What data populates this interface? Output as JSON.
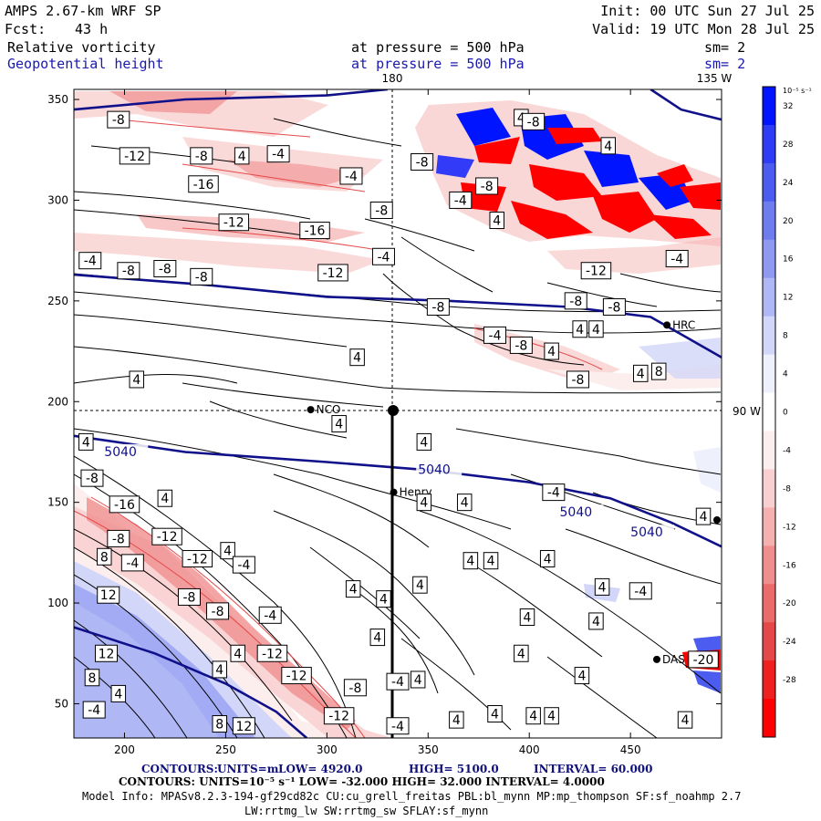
{
  "header": {
    "model": "AMPS 2.67-km WRF SP",
    "fcst_label": "Fcst:",
    "fcst_value": "43 h",
    "init": "Init: 00 UTC Sun 27 Jul 25",
    "valid": "Valid: 19 UTC Mon 28 Jul 25",
    "field1": "Relative vorticity",
    "field2": "Geopotential height",
    "pressure1": "at pressure =  500 hPa",
    "pressure2": "at pressure =  500 hPa",
    "sm1": "sm= 2",
    "sm2": "sm= 2",
    "lon_180": "180",
    "lon_135w": "135 W",
    "lat_90w": "90 W"
  },
  "stations": [
    {
      "name": "NCO",
      "x": 292,
      "y": 196
    },
    {
      "name": "Henry",
      "x": 333,
      "y": 155
    },
    {
      "name": "HRC",
      "x": 468,
      "y": 238
    },
    {
      "name": "DAS",
      "x": 463,
      "y": 72
    }
  ],
  "footer": {
    "line1_prefix": "CONTOURS:",
    "line1_units": "UNITS=m",
    "line1_low": "LOW=   4920.0",
    "line1_high": "HIGH=  5100.0",
    "line1_interval": "INTERVAL=   60.000",
    "line2": "CONTOURS:  UNITS=10⁻⁵ s⁻¹   LOW=  -32.000        HIGH=  32.000      INTERVAL=   4.0000",
    "line3": "Model Info: MPASv8.2.3-194-gf29cd82c CU:cu_grell_freitas PBL:bl_mynn MP:mp_thompson SF:sf_noahmp 2.7",
    "line4": "LW:rrtmg_lw SW:rrtmg_sw SFLAY:sf_mynn"
  },
  "colorbar": {
    "unit": "10⁻⁵ s⁻¹",
    "levels": [
      32,
      28,
      24,
      20,
      16,
      12,
      8,
      4,
      0,
      -4,
      -8,
      -12,
      -16,
      -20,
      -24,
      -28,
      -32
    ],
    "colors": [
      "#0014ff",
      "#2e3df5",
      "#4d5cf0",
      "#6f7cf0",
      "#8f99f2",
      "#b0b7f5",
      "#d2d6f8",
      "#eef0fc",
      "#ffffff",
      "#fdeeee",
      "#f9d0d0",
      "#f5b0b0",
      "#f08e8e",
      "#eb6a6a",
      "#e54848",
      "#ee2020",
      "#ff0000"
    ]
  },
  "chart_data": {
    "type": "heatmap",
    "x_ticks": [
      200,
      250,
      300,
      350,
      400,
      450
    ],
    "y_ticks": [
      50,
      100,
      150,
      200,
      250,
      300,
      350
    ],
    "xlim": [
      175,
      495
    ],
    "ylim": [
      33,
      355
    ],
    "height_contours": [
      {
        "label": "5040",
        "points": [
          [
            175,
            183
          ],
          [
            230,
            175
          ],
          [
            300,
            170
          ],
          [
            350,
            166
          ],
          [
            400,
            160
          ],
          [
            440,
            152
          ],
          [
            470,
            140
          ],
          [
            495,
            128
          ]
        ]
      },
      {
        "label": "",
        "points": [
          [
            175,
            263
          ],
          [
            240,
            258
          ],
          [
            300,
            252
          ],
          [
            360,
            250
          ],
          [
            420,
            247
          ],
          [
            460,
            242
          ],
          [
            495,
            222
          ]
        ]
      },
      {
        "label": "",
        "points": [
          [
            175,
            88
          ],
          [
            215,
            75
          ],
          [
            250,
            60
          ],
          [
            275,
            46
          ],
          [
            290,
            33
          ]
        ]
      },
      {
        "label": "",
        "points": [
          [
            175,
            345
          ],
          [
            230,
            350
          ],
          [
            300,
            352
          ],
          [
            330,
            355
          ]
        ]
      },
      {
        "label": "",
        "points": [
          [
            460,
            355
          ],
          [
            475,
            345
          ],
          [
            495,
            340
          ]
        ]
      }
    ],
    "height_labels": [
      {
        "text": "5040",
        "x": 190,
        "y": 173
      },
      {
        "text": "5040",
        "x": 345,
        "y": 164
      },
      {
        "text": "5040",
        "x": 415,
        "y": 143
      },
      {
        "text": "5040",
        "x": 450,
        "y": 133
      }
    ],
    "vorticity_labels": [
      {
        "text": "-8",
        "x": 197,
        "y": 340
      },
      {
        "text": "-12",
        "x": 205,
        "y": 322
      },
      {
        "text": "-8",
        "x": 238,
        "y": 322
      },
      {
        "text": "4",
        "x": 258,
        "y": 322
      },
      {
        "text": "-4",
        "x": 276,
        "y": 323
      },
      {
        "text": "-16",
        "x": 239,
        "y": 308
      },
      {
        "text": "-4",
        "x": 312,
        "y": 312
      },
      {
        "text": "-8",
        "x": 347,
        "y": 319
      },
      {
        "text": "-4",
        "x": 366,
        "y": 300
      },
      {
        "text": "-8",
        "x": 379,
        "y": 307
      },
      {
        "text": "4",
        "x": 396,
        "y": 341
      },
      {
        "text": "-8",
        "x": 402,
        "y": 339
      },
      {
        "text": "4",
        "x": 439,
        "y": 327
      },
      {
        "text": "-8",
        "x": 327,
        "y": 295
      },
      {
        "text": "-12",
        "x": 254,
        "y": 289
      },
      {
        "text": "-16",
        "x": 294,
        "y": 285
      },
      {
        "text": "4",
        "x": 384,
        "y": 290
      },
      {
        "text": "-4",
        "x": 183,
        "y": 270
      },
      {
        "text": "-8",
        "x": 202,
        "y": 265
      },
      {
        "text": "-8",
        "x": 220,
        "y": 266
      },
      {
        "text": "-8",
        "x": 238,
        "y": 262
      },
      {
        "text": "-12",
        "x": 303,
        "y": 264
      },
      {
        "text": "-4",
        "x": 328,
        "y": 272
      },
      {
        "text": "-12",
        "x": 433,
        "y": 265
      },
      {
        "text": "-4",
        "x": 473,
        "y": 271
      },
      {
        "text": "-8",
        "x": 423,
        "y": 250
      },
      {
        "text": "-8",
        "x": 442,
        "y": 247
      },
      {
        "text": "-8",
        "x": 355,
        "y": 247
      },
      {
        "text": "-4",
        "x": 383,
        "y": 233
      },
      {
        "text": "-8",
        "x": 396,
        "y": 228
      },
      {
        "text": "4",
        "x": 425,
        "y": 236
      },
      {
        "text": "4",
        "x": 433,
        "y": 236
      },
      {
        "text": "4",
        "x": 411,
        "y": 225
      },
      {
        "text": "-8",
        "x": 424,
        "y": 211
      },
      {
        "text": "4",
        "x": 455,
        "y": 214
      },
      {
        "text": "8",
        "x": 464,
        "y": 215
      },
      {
        "text": "4",
        "x": 315,
        "y": 222
      },
      {
        "text": "4",
        "x": 206,
        "y": 211
      },
      {
        "text": "4",
        "x": 306,
        "y": 189
      },
      {
        "text": "4",
        "x": 181,
        "y": 180
      },
      {
        "text": "-8",
        "x": 184,
        "y": 162
      },
      {
        "text": "-16",
        "x": 200,
        "y": 149
      },
      {
        "text": "4",
        "x": 220,
        "y": 152
      },
      {
        "text": "4",
        "x": 348,
        "y": 150
      },
      {
        "text": "4",
        "x": 368,
        "y": 150
      },
      {
        "text": "-4",
        "x": 412,
        "y": 155
      },
      {
        "text": "4",
        "x": 409,
        "y": 122
      },
      {
        "text": "-8",
        "x": 197,
        "y": 132
      },
      {
        "text": "-12",
        "x": 221,
        "y": 133
      },
      {
        "text": "4",
        "x": 251,
        "y": 126
      },
      {
        "text": "8",
        "x": 190,
        "y": 123
      },
      {
        "text": "-4",
        "x": 204,
        "y": 120
      },
      {
        "text": "-12",
        "x": 236,
        "y": 122
      },
      {
        "text": "-4",
        "x": 259,
        "y": 119
      },
      {
        "text": "12",
        "x": 192,
        "y": 104
      },
      {
        "text": "-8",
        "x": 232,
        "y": 103
      },
      {
        "text": "-8",
        "x": 246,
        "y": 96
      },
      {
        "text": "-4",
        "x": 272,
        "y": 94
      },
      {
        "text": "4",
        "x": 313,
        "y": 107
      },
      {
        "text": "4",
        "x": 328,
        "y": 102
      },
      {
        "text": "4",
        "x": 346,
        "y": 109
      },
      {
        "text": "4",
        "x": 371,
        "y": 121
      },
      {
        "text": "4",
        "x": 381,
        "y": 121
      },
      {
        "text": "4",
        "x": 436,
        "y": 108
      },
      {
        "text": "-4",
        "x": 455,
        "y": 106
      },
      {
        "text": "4",
        "x": 399,
        "y": 93
      },
      {
        "text": "4",
        "x": 433,
        "y": 91
      },
      {
        "text": "4",
        "x": 325,
        "y": 83
      },
      {
        "text": "4",
        "x": 396,
        "y": 75
      },
      {
        "text": "12",
        "x": 191,
        "y": 75
      },
      {
        "text": "4",
        "x": 256,
        "y": 75
      },
      {
        "text": "-12",
        "x": 273,
        "y": 75
      },
      {
        "text": "4",
        "x": 247,
        "y": 67
      },
      {
        "text": "-12",
        "x": 285,
        "y": 64
      },
      {
        "text": "8",
        "x": 184,
        "y": 63
      },
      {
        "text": "-8",
        "x": 314,
        "y": 58
      },
      {
        "text": "-4",
        "x": 335,
        "y": 61
      },
      {
        "text": "4",
        "x": 345,
        "y": 62
      },
      {
        "text": "4",
        "x": 426,
        "y": 64
      },
      {
        "text": "4",
        "x": 197,
        "y": 55
      },
      {
        "text": "-4",
        "x": 185,
        "y": 47
      },
      {
        "text": "-12",
        "x": 306,
        "y": 44
      },
      {
        "text": "4",
        "x": 383,
        "y": 45
      },
      {
        "text": "4",
        "x": 402,
        "y": 44
      },
      {
        "text": "4",
        "x": 411,
        "y": 44
      },
      {
        "text": "8",
        "x": 247,
        "y": 40
      },
      {
        "text": "12",
        "x": 259,
        "y": 39
      },
      {
        "text": "-4",
        "x": 335,
        "y": 39
      },
      {
        "text": "4",
        "x": 364,
        "y": 42
      },
      {
        "text": "-20",
        "x": 486,
        "y": 72
      },
      {
        "text": "4",
        "x": 348,
        "y": 180
      },
      {
        "text": "4",
        "x": 477,
        "y": 42
      },
      {
        "text": "4",
        "x": 486,
        "y": 143
      }
    ]
  }
}
